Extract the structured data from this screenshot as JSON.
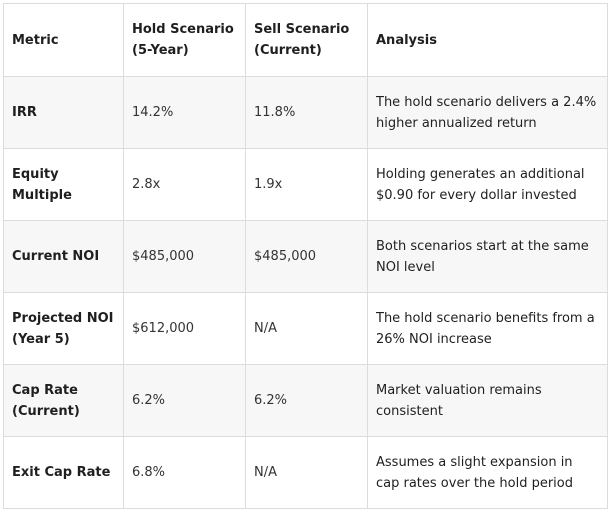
{
  "table": {
    "headers": [
      "Metric",
      "Hold Scenario (5-Year)",
      "Sell Scenario (Current)",
      "Analysis"
    ],
    "rows": [
      {
        "metric": "IRR",
        "hold": "14.2%",
        "sell": "11.8%",
        "analysis": "The hold scenario delivers a 2.4% higher annualized return"
      },
      {
        "metric": "Equity Multiple",
        "hold": "2.8x",
        "sell": "1.9x",
        "analysis": "Holding generates an additional $0.90 for every dollar invested"
      },
      {
        "metric": "Current NOI",
        "hold": "$485,000",
        "sell": "$485,000",
        "analysis": "Both scenarios start at the same NOI level"
      },
      {
        "metric": "Projected NOI (Year 5)",
        "hold": "$612,000",
        "sell": "N/A",
        "analysis": "The hold scenario benefits from a 26% NOI increase"
      },
      {
        "metric": "Cap Rate (Current)",
        "hold": "6.2%",
        "sell": "6.2%",
        "analysis": "Market valuation remains consistent"
      },
      {
        "metric": "Exit Cap Rate",
        "hold": "6.8%",
        "sell": "N/A",
        "analysis": "Assumes a slight expansion in cap rates over the hold period"
      }
    ]
  }
}
